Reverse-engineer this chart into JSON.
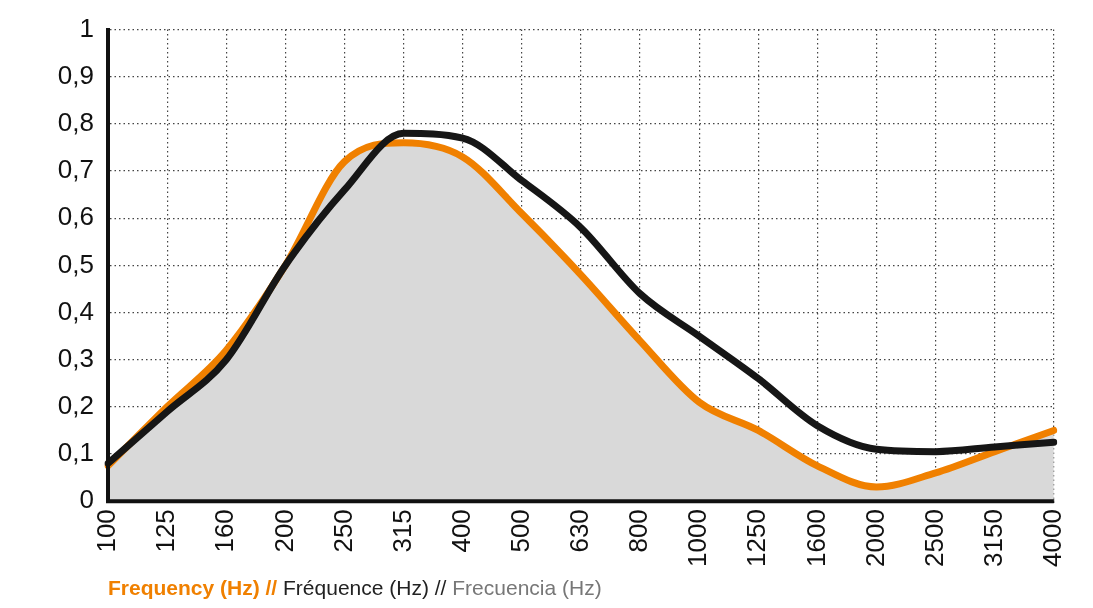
{
  "chart_data": {
    "type": "line",
    "xlabel": "Frequency (Hz) // Fréquence (Hz) // Frecuencia (Hz)",
    "categories": [
      "100",
      "125",
      "160",
      "200",
      "250",
      "315",
      "400",
      "500",
      "630",
      "800",
      "1000",
      "1250",
      "1600",
      "2000",
      "2500",
      "3150",
      "4000"
    ],
    "series": [
      {
        "type": "area",
        "color": "#f08000",
        "values": [
          0.075,
          0.2,
          0.32,
          0.5,
          0.72,
          0.76,
          0.73,
          0.61,
          0.48,
          0.34,
          0.21,
          0.15,
          0.075,
          0.03,
          0.06,
          0.105,
          0.15
        ]
      },
      {
        "type": "line",
        "color": "#161616",
        "values": [
          0.08,
          0.19,
          0.3,
          0.5,
          0.66,
          0.78,
          0.77,
          0.68,
          0.58,
          0.44,
          0.35,
          0.26,
          0.16,
          0.11,
          0.105,
          0.115,
          0.125
        ]
      }
    ],
    "ylim": [
      0,
      1
    ],
    "yticks": [
      0,
      {
        "value": 0.1,
        "label": "0,1"
      },
      {
        "value": 0.2,
        "label": "0,2"
      },
      {
        "value": 0.3,
        "label": "0,3"
      },
      {
        "value": 0.4,
        "label": "0,4"
      },
      {
        "value": 0.5,
        "label": "0,5"
      },
      {
        "value": 0.6,
        "label": "0,6"
      },
      {
        "value": 0.7,
        "label": "0,7"
      },
      {
        "value": 0.8,
        "label": "0,8"
      },
      {
        "value": 0.9,
        "label": "0,9"
      },
      1
    ],
    "grid": true,
    "legend": false,
    "marker": "none",
    "line_style": "solid"
  }
}
